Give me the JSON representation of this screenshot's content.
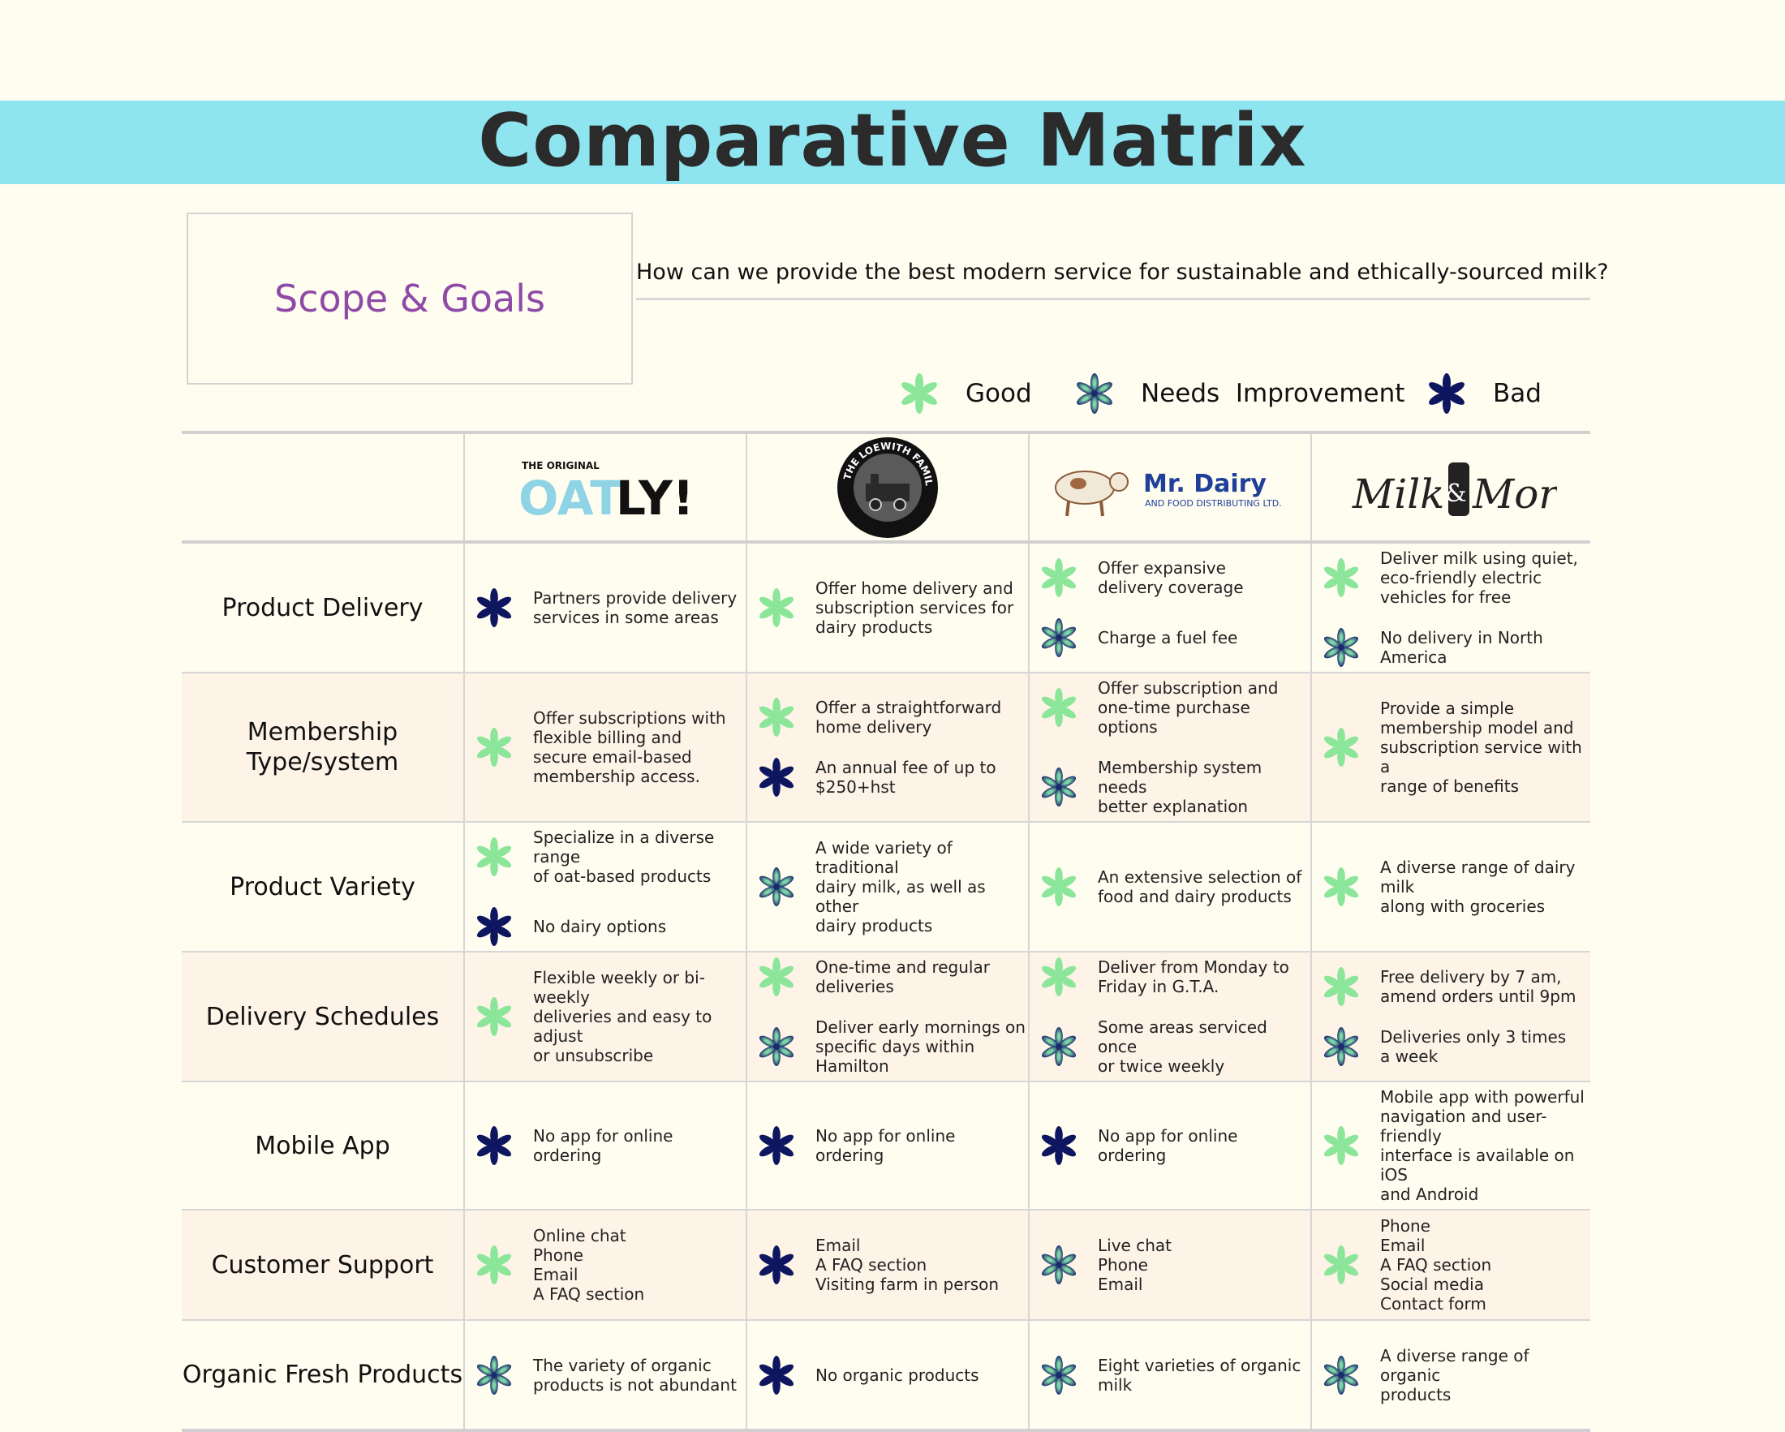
{
  "page": {
    "title": "Comparative Matrix",
    "scope_label": "Scope & Goals",
    "question": "How can we provide the best modern service for sustainable and ethically-sourced milk?"
  },
  "legend": [
    {
      "rating": "good",
      "label": "Good"
    },
    {
      "rating": "needs",
      "label": "Needs  Improvement"
    },
    {
      "rating": "bad",
      "label": "Bad"
    }
  ],
  "colors": {
    "good": "#8be69a",
    "needs_outer": "#1b2a6e",
    "needs_inner": "#7fd8a4",
    "bad": "#0f1660",
    "banner": "#8ee4ef",
    "scope_text": "#8e4aa6",
    "row_shade": "#fdf3e7"
  },
  "brands": [
    {
      "name": "OATLY!",
      "top_text": "THE ORIGINAL",
      "logo": "oatly-logo"
    },
    {
      "name": "THE LOEWITH FAMILY",
      "logo": "loewith-family-logo"
    },
    {
      "name": "Mr. Dairy",
      "sub_text": "AND FOOD DISTRIBUTING LTD.",
      "logo": "mr-dairy-logo"
    },
    {
      "name": "Milk & More",
      "logo": "milk-and-more-logo"
    }
  ],
  "rows": [
    {
      "label": "Product Delivery",
      "shade": false,
      "cells": [
        [
          {
            "rating": "bad",
            "text": "Partners provide delivery\nservices in some areas"
          }
        ],
        [
          {
            "rating": "good",
            "text": "Offer home delivery and\nsubscription services for\ndairy products"
          }
        ],
        [
          {
            "rating": "good",
            "text": "Offer expansive\ndelivery coverage"
          },
          {
            "rating": "needs",
            "text": "Charge a fuel fee"
          }
        ],
        [
          {
            "rating": "good",
            "text": "Deliver milk using quiet,\neco-friendly electric\nvehicles for free"
          },
          {
            "rating": "needs",
            "text": "No delivery in North America"
          }
        ]
      ]
    },
    {
      "label": "Membership\nType/system",
      "shade": true,
      "cells": [
        [
          {
            "rating": "good",
            "text": "Offer subscriptions with\nflexible billing and\nsecure email-based\nmembership access."
          }
        ],
        [
          {
            "rating": "good",
            "text": "Offer a straightforward\nhome delivery"
          },
          {
            "rating": "bad",
            "text": "An annual fee of up to\n$250+hst"
          }
        ],
        [
          {
            "rating": "good",
            "text": "Offer subscription and\none-time purchase options"
          },
          {
            "rating": "needs",
            "text": "Membership system needs\nbetter explanation"
          }
        ],
        [
          {
            "rating": "good",
            "text": "Provide a simple\nmembership model and\nsubscription service with a\nrange of benefits"
          }
        ]
      ]
    },
    {
      "label": "Product Variety",
      "shade": false,
      "cells": [
        [
          {
            "rating": "good",
            "text": "Specialize in a diverse range\nof oat-based products"
          },
          {
            "rating": "bad",
            "text": "No dairy options"
          }
        ],
        [
          {
            "rating": "needs",
            "text": "A wide variety of traditional\ndairy milk,  as well as other\ndairy products"
          }
        ],
        [
          {
            "rating": "good",
            "text": "An extensive selection of\nfood and dairy products"
          }
        ],
        [
          {
            "rating": "good",
            "text": "A diverse range of dairy milk\nalong with groceries"
          }
        ]
      ]
    },
    {
      "label": "Delivery Schedules",
      "shade": true,
      "cells": [
        [
          {
            "rating": "good",
            "text": "Flexible weekly or bi-weekly\ndeliveries and easy to adjust\nor unsubscribe"
          }
        ],
        [
          {
            "rating": "good",
            "text": "One-time and regular\ndeliveries"
          },
          {
            "rating": "needs",
            "text": "Deliver early mornings on\nspecific days within Hamilton"
          }
        ],
        [
          {
            "rating": "good",
            "text": "Deliver from Monday to\nFriday in G.T.A."
          },
          {
            "rating": "needs",
            "text": "Some areas serviced once\nor twice weekly"
          }
        ],
        [
          {
            "rating": "good",
            "text": "Free delivery by 7 am,\namend orders until 9pm"
          },
          {
            "rating": "needs",
            "text": "Deliveries only 3 times\na week"
          }
        ]
      ]
    },
    {
      "label": "Mobile App",
      "shade": false,
      "cells": [
        [
          {
            "rating": "bad",
            "text": "No app for online ordering"
          }
        ],
        [
          {
            "rating": "bad",
            "text": "No app for online ordering"
          }
        ],
        [
          {
            "rating": "bad",
            "text": "No app for online ordering"
          }
        ],
        [
          {
            "rating": "good",
            "text": "Mobile app with powerful\nnavigation and user-friendly\ninterface is available on iOS\nand Android"
          }
        ]
      ]
    },
    {
      "label": "Customer Support",
      "shade": true,
      "cells": [
        [
          {
            "rating": "good",
            "text": "Online chat\nPhone\nEmail\nA FAQ section"
          }
        ],
        [
          {
            "rating": "bad",
            "text": "Email\nA FAQ section\nVisiting farm in person"
          }
        ],
        [
          {
            "rating": "needs",
            "text": "Live chat\nPhone\nEmail"
          }
        ],
        [
          {
            "rating": "good",
            "text": "Phone\nEmail\nA FAQ section\nSocial media\nContact form"
          }
        ]
      ]
    },
    {
      "label": "Organic Fresh Products",
      "shade": false,
      "cells": [
        [
          {
            "rating": "needs",
            "text": "The variety of organic\nproducts is not abundant"
          }
        ],
        [
          {
            "rating": "bad",
            "text": "No organic products"
          }
        ],
        [
          {
            "rating": "needs",
            "text": "Eight varieties of organic\nmilk"
          }
        ],
        [
          {
            "rating": "needs",
            "text": "A diverse range of organic\nproducts"
          }
        ]
      ]
    }
  ]
}
